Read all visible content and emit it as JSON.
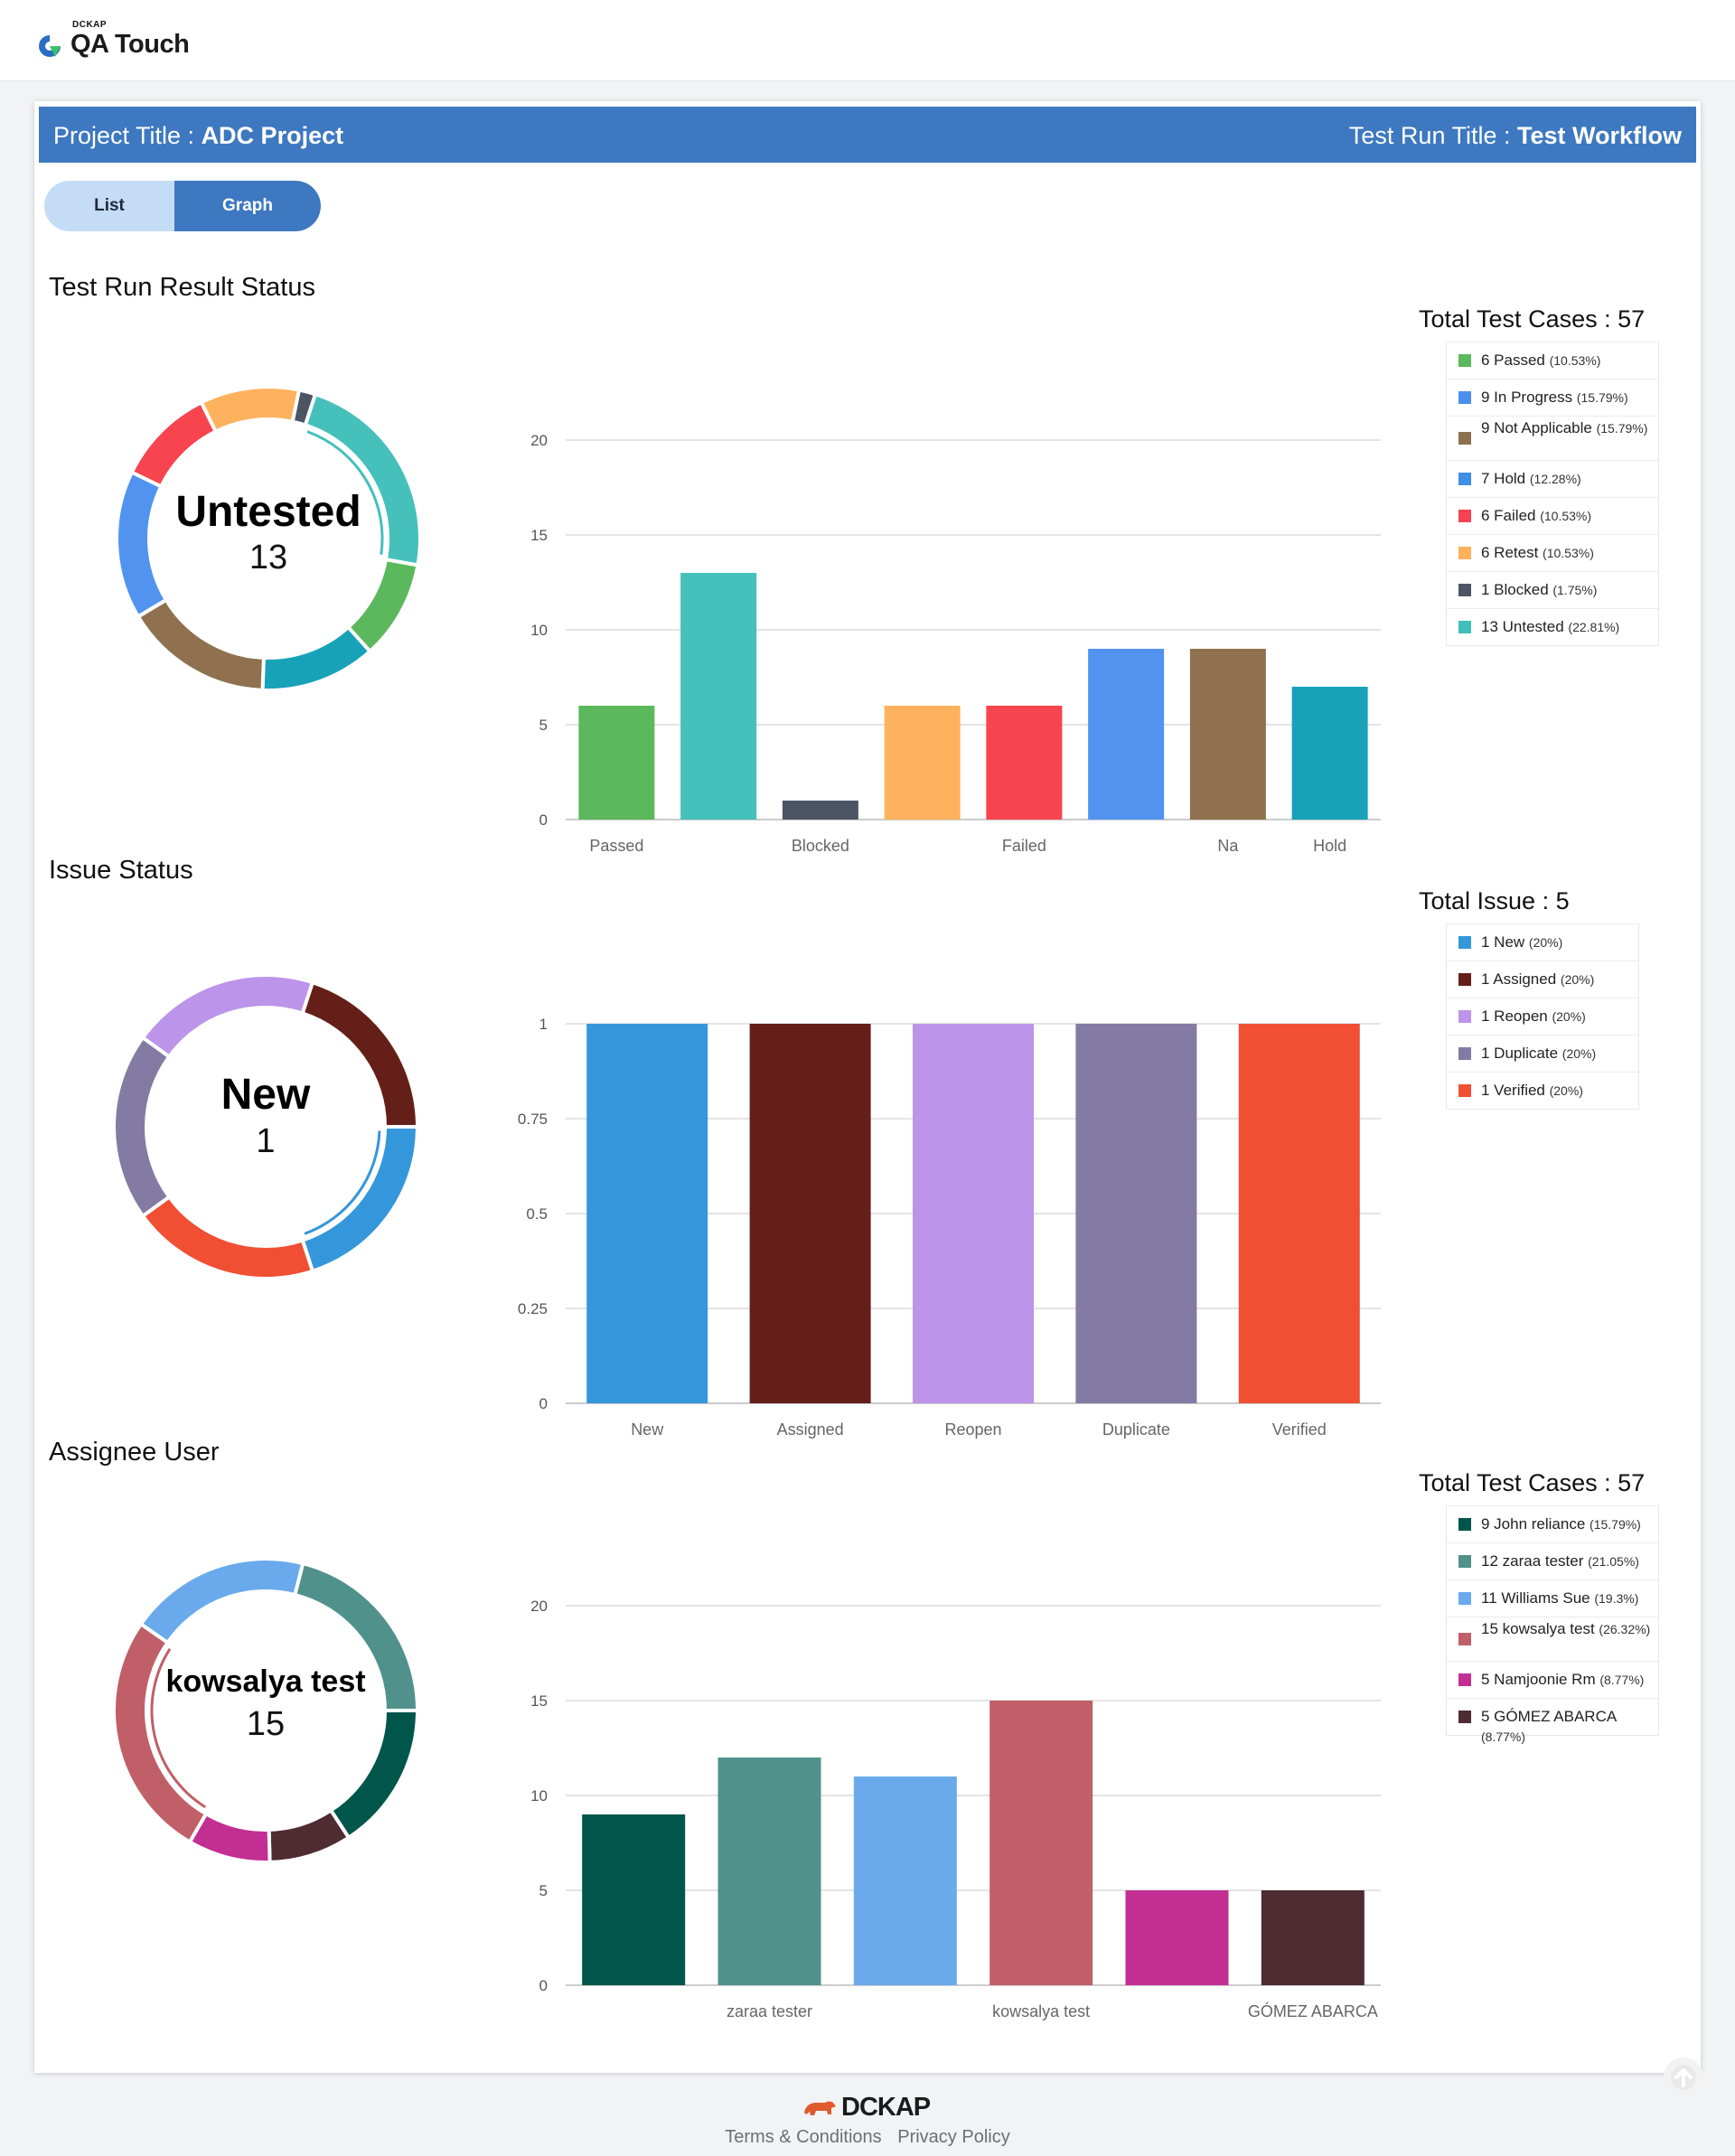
{
  "header": {
    "brand_small": "DCKAP",
    "brand": "QA Touch"
  },
  "titlebar": {
    "project_label": "Project Title : ",
    "project_value": "ADC Project",
    "run_label": "Test Run Title : ",
    "run_value": "Test Workflow"
  },
  "view_toggle": {
    "list_label": "List",
    "graph_label": "Graph",
    "selected": "Graph"
  },
  "sections": {
    "test_run": {
      "title": "Test Run Result Status",
      "center_label": "Untested",
      "center_value": "13",
      "total_label": "Total Test Cases : 57",
      "legend": [
        {
          "count": "6",
          "name": "Passed",
          "pct": "(10.53%)",
          "color": "#5cb85c"
        },
        {
          "count": "9",
          "name": "In Progress",
          "pct": "(15.79%)",
          "color": "#4a8fec"
        },
        {
          "count": "9",
          "name": "Not Applicable",
          "pct": "(15.79%)",
          "color": "#8b7150"
        },
        {
          "count": "7",
          "name": "Hold",
          "pct": "(12.28%)",
          "color": "#3f8ee8"
        },
        {
          "count": "6",
          "name": "Failed",
          "pct": "(10.53%)",
          "color": "#f44250"
        },
        {
          "count": "6",
          "name": "Retest",
          "pct": "(10.53%)",
          "color": "#ffb05a"
        },
        {
          "count": "1",
          "name": "Blocked",
          "pct": "(1.75%)",
          "color": "#4d5564"
        },
        {
          "count": "13",
          "name": "Untested",
          "pct": "(22.81%)",
          "color": "#3fbfb9"
        }
      ]
    },
    "issue": {
      "title": "Issue Status",
      "center_label": "New",
      "center_value": "1",
      "total_label": "Total Issue : 5",
      "legend": [
        {
          "count": "1",
          "name": "New",
          "pct": "(20%)",
          "color": "#3597db"
        },
        {
          "count": "1",
          "name": "Assigned",
          "pct": "(20%)",
          "color": "#641f18"
        },
        {
          "count": "1",
          "name": "Reopen",
          "pct": "(20%)",
          "color": "#bc94e9"
        },
        {
          "count": "1",
          "name": "Duplicate",
          "pct": "(20%)",
          "color": "#837ba3"
        },
        {
          "count": "1",
          "name": "Verified",
          "pct": "(20%)",
          "color": "#f04f33"
        }
      ]
    },
    "assignee": {
      "title": "Assignee User",
      "center_label": "kowsalya test",
      "center_value": "15",
      "total_label": "Total Test Cases : 57",
      "legend": [
        {
          "count": "9",
          "name": "John reliance",
          "pct": "(15.79%)",
          "color": "#00564b"
        },
        {
          "count": "12",
          "name": "zaraa tester",
          "pct": "(21.05%)",
          "color": "#50918c"
        },
        {
          "count": "11",
          "name": "Williams Sue",
          "pct": "(19.3%)",
          "color": "#6aaaec"
        },
        {
          "count": "15",
          "name": "kowsalya test",
          "pct": "(26.32%)",
          "color": "#c05f68"
        },
        {
          "count": "5",
          "name": "Namjoonie Rm",
          "pct": "(8.77%)",
          "color": "#c32e93"
        },
        {
          "count": "5",
          "name": "GÓMEZ ABARCA",
          "pct": "(8.77%)",
          "color": "#4e2c31"
        }
      ]
    }
  },
  "chart_data": [
    {
      "type": "bar",
      "categories": [
        "Passed",
        "Untested",
        "Blocked",
        "Retest",
        "Failed",
        "In Progress",
        "Na",
        "Hold"
      ],
      "shown_labels": [
        "Passed",
        "",
        "Blocked",
        "",
        "Failed",
        "",
        "Na",
        "Hold"
      ],
      "values": [
        6,
        13,
        1,
        6,
        6,
        9,
        9,
        7
      ],
      "colors": [
        "#5cb85c",
        "#45c0bb",
        "#4d5564",
        "#ffb25d",
        "#f7444e",
        "#5293f0",
        "#8f714f",
        "#17a2b8"
      ],
      "ylim": [
        0,
        20
      ],
      "yticks": [
        "0",
        "5",
        "10",
        "15",
        "20"
      ],
      "grid": true
    },
    {
      "type": "bar",
      "categories": [
        "New",
        "Assigned",
        "Reopen",
        "Duplicate",
        "Verified"
      ],
      "shown_labels": [
        "New",
        "Assigned",
        "Reopen",
        "Duplicate",
        "Verified"
      ],
      "values": [
        1,
        1,
        1,
        1,
        1
      ],
      "colors": [
        "#3597db",
        "#641f18",
        "#bc94e9",
        "#837ba3",
        "#f04f33"
      ],
      "ylim": [
        0,
        1
      ],
      "yticks": [
        "0",
        "0.25",
        "0.5",
        "0.75",
        "1"
      ],
      "grid": true
    },
    {
      "type": "bar",
      "categories": [
        "John reliance",
        "zaraa tester",
        "Williams Sue",
        "kowsalya test",
        "Namjoonie Rm",
        "GÓMEZ ABARCA"
      ],
      "shown_labels": [
        "",
        "zaraa tester",
        "",
        "kowsalya test",
        "",
        "GÓMEZ ABARCA"
      ],
      "values": [
        9,
        12,
        11,
        15,
        5,
        5
      ],
      "colors": [
        "#00564b",
        "#50918c",
        "#6aaaec",
        "#c05f68",
        "#c32e93",
        "#4e2c31"
      ],
      "ylim": [
        0,
        20
      ],
      "yticks": [
        "0",
        "5",
        "10",
        "15",
        "20"
      ],
      "grid": true
    },
    {
      "type": "pie",
      "categories": [
        "Untested",
        "Passed",
        "Hold",
        "Not Applicable",
        "In Progress",
        "Failed",
        "Retest",
        "Blocked"
      ],
      "values": [
        13,
        6,
        7,
        9,
        9,
        6,
        6,
        1
      ],
      "colors": [
        "#45c0bb",
        "#5cb85c",
        "#17a2b8",
        "#8f714f",
        "#5293f0",
        "#f7444e",
        "#ffb25d",
        "#4d5564"
      ]
    },
    {
      "type": "pie",
      "categories": [
        "New",
        "Verified",
        "Duplicate",
        "Reopen",
        "Assigned"
      ],
      "values": [
        1,
        1,
        1,
        1,
        1
      ],
      "colors": [
        "#3597db",
        "#f04f33",
        "#837ba3",
        "#bc94e9",
        "#641f18"
      ]
    },
    {
      "type": "pie",
      "categories": [
        "John reliance",
        "GÓMEZ ABARCA",
        "Namjoonie Rm",
        "kowsalya test",
        "Williams Sue",
        "zaraa tester"
      ],
      "values": [
        9,
        5,
        5,
        15,
        11,
        12
      ],
      "colors": [
        "#00564b",
        "#4e2c31",
        "#c32e93",
        "#c05f68",
        "#6aaaec",
        "#50918c"
      ]
    }
  ],
  "footer": {
    "brand": "DCKAP",
    "terms": "Terms & Conditions",
    "privacy": "Privacy Policy"
  },
  "scroll_top_icon": "arrow-up-icon"
}
